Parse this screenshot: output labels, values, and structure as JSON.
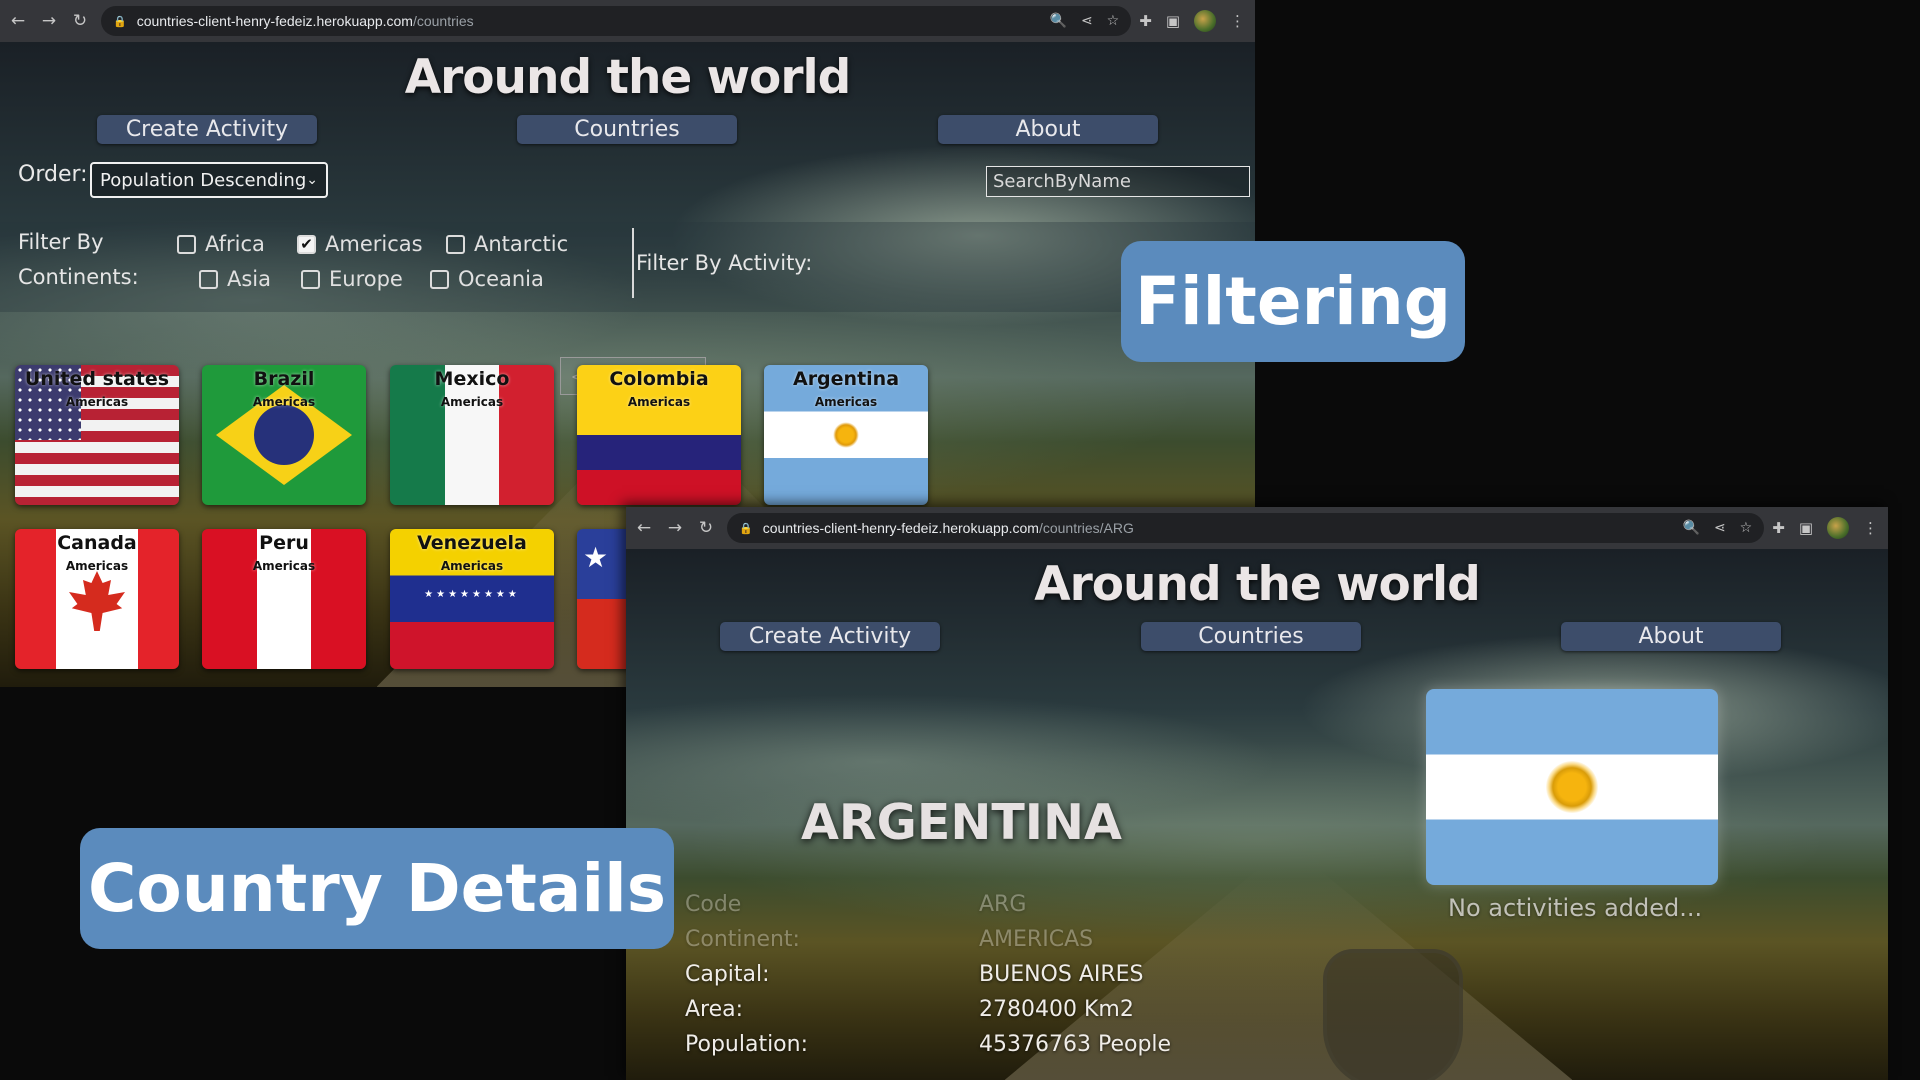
{
  "filtering_window": {
    "url_host": "countries-client-henry-fedeiz.herokuapp.com",
    "url_path": "/countries",
    "site_title": "Around the world",
    "nav": [
      "Create Activity",
      "Countries",
      "About"
    ],
    "order_label": "Order:",
    "order_value": "Population Descending",
    "search_placeholder": "SearchByName",
    "filter_title_line1": "Filter By",
    "filter_title_line2": "Continents:",
    "continents": [
      {
        "label": "Africa",
        "checked": false
      },
      {
        "label": "Americas",
        "checked": true
      },
      {
        "label": "Antarctic",
        "checked": false
      },
      {
        "label": "Asia",
        "checked": false
      },
      {
        "label": "Europe",
        "checked": false
      },
      {
        "label": "Oceania",
        "checked": false
      }
    ],
    "activity_filter_label": "Filter By Activity:",
    "pager": [
      "<<",
      "<",
      ">",
      ">>"
    ],
    "cards": [
      {
        "name": "United states",
        "continent": "Americas",
        "flag": "us-flag"
      },
      {
        "name": "Brazil",
        "continent": "Americas",
        "flag": "br-flag"
      },
      {
        "name": "Mexico",
        "continent": "Americas",
        "flag": "mx-flag"
      },
      {
        "name": "Colombia",
        "continent": "Americas",
        "flag": "co-flag"
      },
      {
        "name": "Argentina",
        "continent": "Americas",
        "flag": "ar-flag"
      },
      {
        "name": "Canada",
        "continent": "Americas",
        "flag": "ca-flag"
      },
      {
        "name": "Peru",
        "continent": "Americas",
        "flag": "pe-flag"
      },
      {
        "name": "Venezuela",
        "continent": "Americas",
        "flag": "ve-flag"
      }
    ]
  },
  "details_window": {
    "url_host": "countries-client-henry-fedeiz.herokuapp.com",
    "url_path": "/countries/ARG",
    "site_title": "Around the world",
    "nav": [
      "Create Activity",
      "Countries",
      "About"
    ],
    "country_name": "ARGENTINA",
    "no_activities": "No activities added...",
    "details": [
      {
        "label": "Code",
        "value": "ARG"
      },
      {
        "label": "Continent:",
        "value": "AMERICAS"
      },
      {
        "label": "Capital:",
        "value": "BUENOS AIRES"
      },
      {
        "label": "Area:",
        "value": "2780400 Km2"
      },
      {
        "label": "Population:",
        "value": "45376763 People"
      }
    ]
  },
  "callouts": {
    "filtering": "Filtering",
    "details": "Country Details"
  },
  "colors": {
    "nav_pill": "#3d4d6a",
    "callout": "#5b8bbd",
    "chrome_bar": "#35363a"
  }
}
